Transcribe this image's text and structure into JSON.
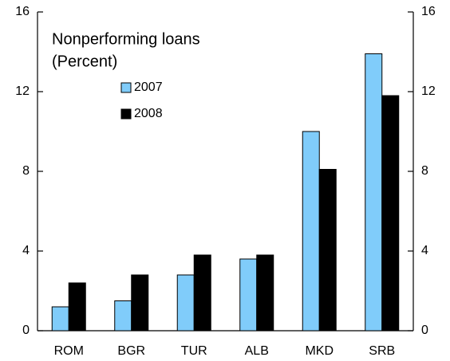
{
  "chart_data": {
    "type": "bar",
    "title": "Nonperforming loans",
    "subtitle": "(Percent)",
    "categories": [
      "ROM",
      "BGR",
      "TUR",
      "ALB",
      "MKD",
      "SRB"
    ],
    "series": [
      {
        "name": "2007",
        "color": "#80ccfa",
        "values": [
          1.2,
          1.5,
          2.8,
          3.6,
          10.0,
          13.9
        ]
      },
      {
        "name": "2008",
        "color": "#000000",
        "values": [
          2.4,
          2.8,
          3.8,
          3.8,
          8.1,
          11.8
        ]
      }
    ],
    "ylim": [
      0,
      16
    ],
    "yticks": [
      0,
      4,
      8,
      12,
      16
    ],
    "y2lim": [
      0,
      16
    ],
    "y2ticks": [
      0,
      4,
      8,
      12,
      16
    ],
    "grid": false
  }
}
